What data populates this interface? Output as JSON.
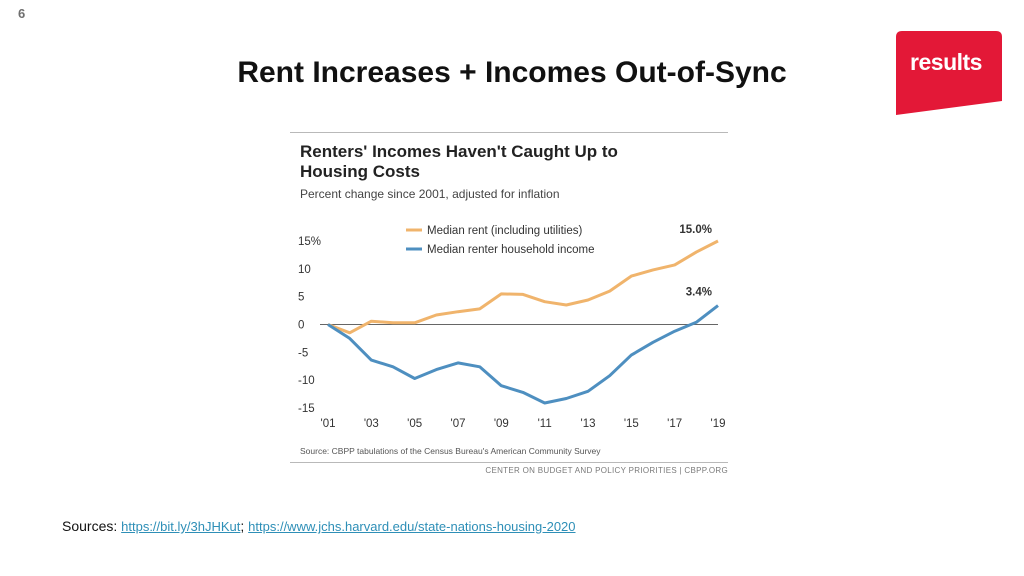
{
  "slide": {
    "number": "6",
    "title": "Rent Increases + Incomes Out-of-Sync",
    "logo_text": "results",
    "brand_color": "#e31837"
  },
  "chart_card": {
    "source": "Source: CBPP tabulations of the Census Bureau's American Community Survey",
    "credit": "CENTER ON BUDGET AND POLICY PRIORITIES | CBPP.ORG"
  },
  "chart_data": {
    "type": "line",
    "title_line1": "Renters' Incomes Haven't Caught Up to",
    "title_line2": "Housing Costs",
    "subtitle": "Percent change since 2001, adjusted for inflation",
    "x": [
      2001,
      2002,
      2003,
      2004,
      2005,
      2006,
      2007,
      2008,
      2009,
      2010,
      2011,
      2012,
      2013,
      2014,
      2015,
      2016,
      2017,
      2018,
      2019
    ],
    "xtick_values": [
      2001,
      2003,
      2005,
      2007,
      2009,
      2011,
      2013,
      2015,
      2017,
      2019
    ],
    "xtick_labels": [
      "'01",
      "'03",
      "'05",
      "'07",
      "'09",
      "'11",
      "'13",
      "'15",
      "'17",
      "'19"
    ],
    "ylim": [
      -15,
      15
    ],
    "ytick_values": [
      15,
      10,
      5,
      0,
      -5,
      -10,
      -15
    ],
    "ytick_labels": [
      "15%",
      "10",
      "5",
      "0",
      "-5",
      "-10",
      "-15"
    ],
    "legend_position": "top",
    "series": [
      {
        "name": "Median rent (including utilities)",
        "color": "#f0b46c",
        "values": [
          0,
          -1.5,
          0.6,
          0.3,
          0.3,
          1.7,
          2.3,
          2.8,
          5.5,
          5.4,
          4.1,
          3.5,
          4.4,
          6.0,
          8.7,
          9.8,
          10.7,
          13.0,
          15.0
        ],
        "end_label": "15.0%"
      },
      {
        "name": "Median renter household income",
        "color": "#4e8fc0",
        "values": [
          0,
          -2.5,
          -6.4,
          -7.6,
          -9.7,
          -8.1,
          -6.9,
          -7.6,
          -11.0,
          -12.2,
          -14.1,
          -13.3,
          -12.0,
          -9.2,
          -5.5,
          -3.2,
          -1.2,
          0.4,
          3.4
        ],
        "end_label": "3.4%"
      }
    ]
  },
  "sources": {
    "prefix": "Sources: ",
    "link1": "https://bit.ly/3hJHKut",
    "separator": "; ",
    "link2": "https://www.jchs.harvard.edu/state-nations-housing-2020"
  }
}
